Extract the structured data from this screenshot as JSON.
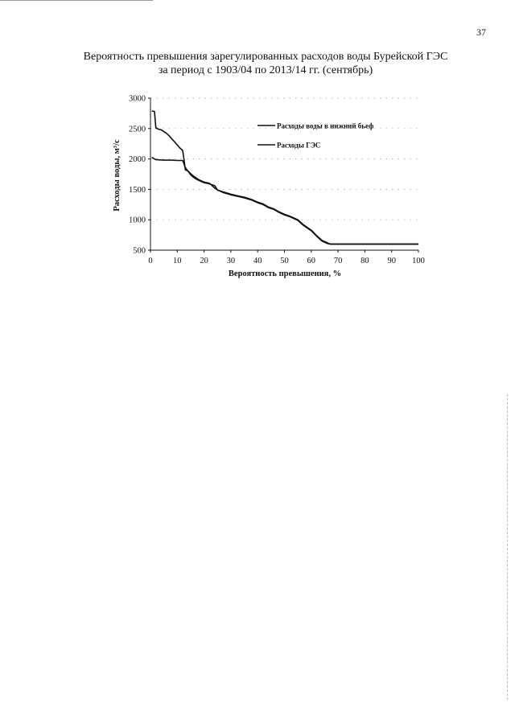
{
  "page": {
    "number": "37"
  },
  "chart_data": {
    "type": "line",
    "title": [
      "Вероятность превышения зарегулированных расходов воды Бурейской ГЭС",
      "за период с 1903/04 по 2013/14 гг. (сентябрь)"
    ],
    "xlabel": "Вероятность превышения, %",
    "ylabel": "Расходы воды, м³/с",
    "xlim": [
      0,
      100
    ],
    "ylim": [
      500,
      3000
    ],
    "xticks": [
      "0",
      "10",
      "20",
      "30",
      "40",
      "50",
      "60",
      "70",
      "80",
      "90",
      "100"
    ],
    "yticks": [
      "500",
      "1000",
      "1500",
      "2000",
      "2500",
      "3000"
    ],
    "grid": true,
    "legend_position": "top-right",
    "series": [
      {
        "name": "Расходы воды в нижний бьеф",
        "color": "#111111",
        "x": [
          0.5,
          1.5,
          2,
          3,
          4,
          5,
          6,
          7,
          8,
          9,
          10,
          11,
          12,
          12.5,
          13,
          14,
          15,
          16,
          17,
          18,
          20,
          22,
          24,
          25,
          27,
          30,
          32,
          35,
          38,
          40,
          42,
          44,
          46,
          48,
          50,
          52,
          55,
          57,
          60,
          62,
          64,
          66,
          67,
          70,
          80,
          90,
          100
        ],
        "y": [
          2790,
          2780,
          2510,
          2490,
          2480,
          2450,
          2420,
          2380,
          2330,
          2280,
          2230,
          2180,
          2140,
          2000,
          1820,
          1800,
          1760,
          1720,
          1690,
          1660,
          1620,
          1600,
          1520,
          1490,
          1460,
          1420,
          1400,
          1370,
          1330,
          1290,
          1260,
          1210,
          1180,
          1130,
          1090,
          1060,
          1000,
          920,
          830,
          740,
          660,
          620,
          600,
          600,
          600,
          600,
          600
        ]
      },
      {
        "name": "Расходы ГЭС",
        "color": "#111111",
        "x": [
          0.5,
          1,
          2,
          3,
          5,
          8,
          10,
          12,
          13,
          14,
          15,
          16,
          17,
          18,
          20,
          22,
          24,
          25,
          27,
          30,
          32,
          35,
          38,
          40,
          42,
          44,
          46,
          48,
          50,
          52,
          55,
          57,
          60,
          62,
          64,
          66,
          67,
          70,
          80,
          90,
          100
        ],
        "y": [
          2030,
          2010,
          1990,
          1985,
          1980,
          1980,
          1975,
          1975,
          1860,
          1800,
          1740,
          1700,
          1670,
          1650,
          1610,
          1590,
          1560,
          1490,
          1450,
          1410,
          1390,
          1360,
          1320,
          1280,
          1250,
          1200,
          1170,
          1120,
          1080,
          1050,
          990,
          910,
          820,
          730,
          650,
          610,
          600,
          600,
          600,
          600,
          600
        ]
      }
    ]
  }
}
